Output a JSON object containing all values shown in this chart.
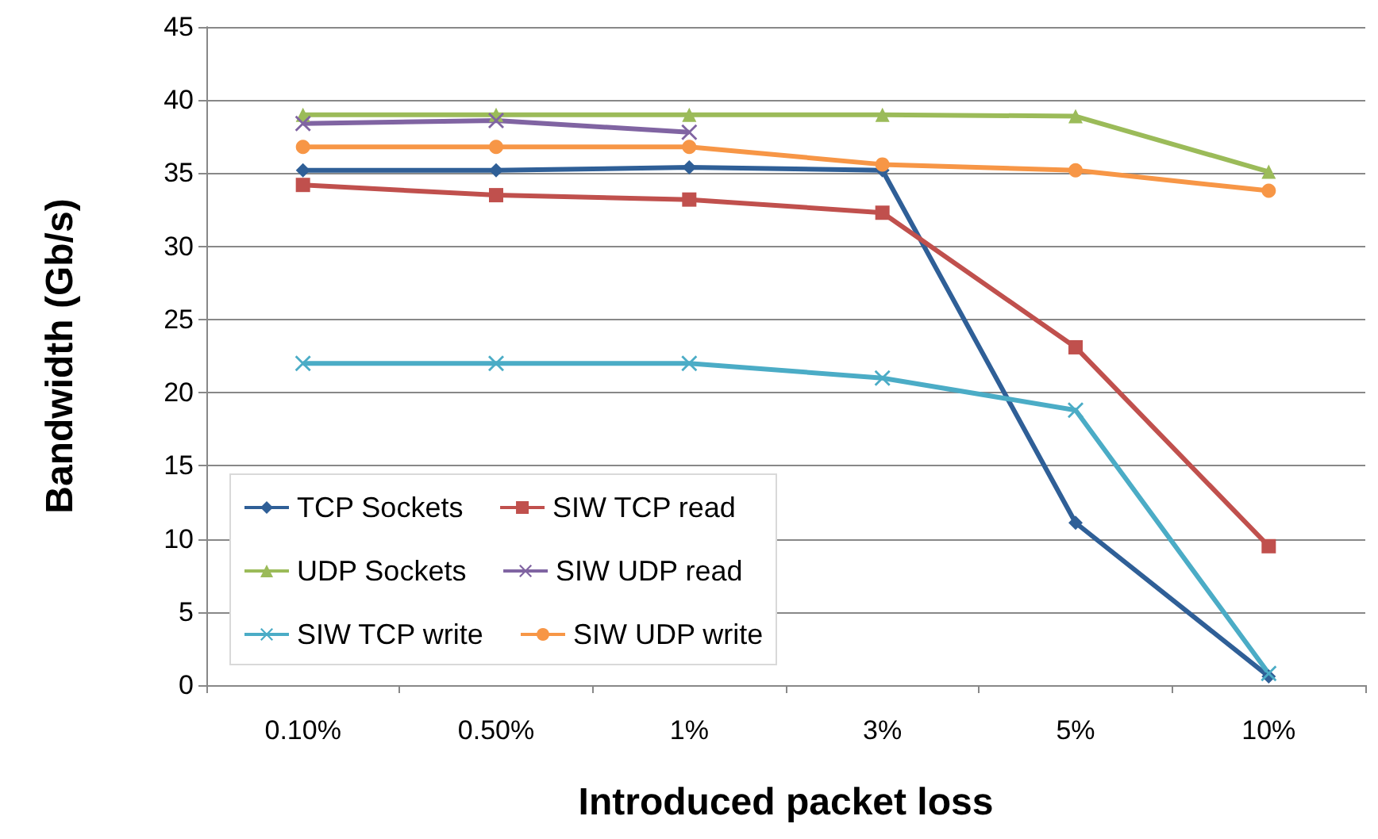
{
  "chart_data": {
    "type": "line",
    "xlabel": "Introduced packet loss",
    "ylabel": "Bandwidth (Gb/s)",
    "categories": [
      "0.10%",
      "0.50%",
      "1%",
      "3%",
      "5%",
      "10%"
    ],
    "ylim": [
      0,
      45
    ],
    "yticks": [
      0,
      5,
      10,
      15,
      20,
      25,
      30,
      35,
      40,
      45
    ],
    "grid": "y",
    "legend": "bottom left",
    "line_style": "solid",
    "series": [
      {
        "name": "TCP Sockets",
        "color": "#2f5f97",
        "marker": "diamond",
        "values": [
          35.2,
          35.2,
          35.4,
          35.2,
          11.1,
          0.6
        ]
      },
      {
        "name": "SIW TCP read",
        "color": "#c0504d",
        "marker": "square",
        "values": [
          34.2,
          33.5,
          33.2,
          32.3,
          23.1,
          9.5
        ]
      },
      {
        "name": "UDP Sockets",
        "color": "#9bbb59",
        "marker": "triangle",
        "values": [
          39.0,
          39.0,
          39.0,
          39.0,
          38.9,
          35.1
        ]
      },
      {
        "name": "SIW UDP read",
        "color": "#8064a2",
        "marker": "cross",
        "values": [
          38.4,
          38.6,
          37.8,
          null,
          null,
          null
        ]
      },
      {
        "name": "SIW TCP write",
        "color": "#4bacc6",
        "marker": "cross",
        "values": [
          22.0,
          22.0,
          22.0,
          21.0,
          18.8,
          0.8
        ]
      },
      {
        "name": "SIW UDP write",
        "color": "#f79646",
        "marker": "circle",
        "values": [
          36.8,
          36.8,
          36.8,
          35.6,
          35.2,
          33.8
        ]
      }
    ]
  }
}
